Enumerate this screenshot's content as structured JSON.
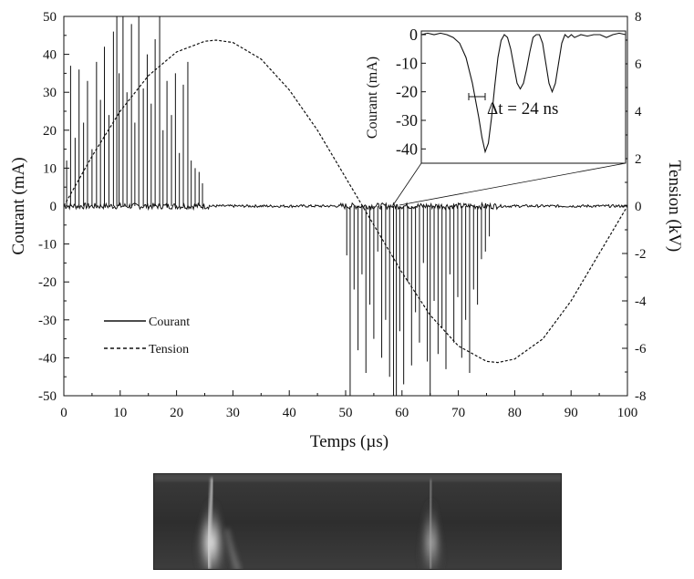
{
  "chart_data": [
    {
      "type": "line",
      "xlabel": "Temps (µs)",
      "ylabel": "Courant (mA)",
      "y2label": "Tension (kV)",
      "xlim": [
        0,
        100
      ],
      "ylim": [
        -50,
        50
      ],
      "y2lim": [
        -8,
        8
      ],
      "xticks": [
        "0",
        "10",
        "20",
        "30",
        "40",
        "50",
        "60",
        "70",
        "80",
        "90",
        "100"
      ],
      "yticks": [
        "50",
        "40",
        "30",
        "20",
        "10",
        "0",
        "-10",
        "-20",
        "-30",
        "-40",
        "-50"
      ],
      "y2ticks": [
        "8",
        "6",
        "4",
        "2",
        "0",
        "-2",
        "-4",
        "-6",
        "-8"
      ],
      "grid": false,
      "legend": {
        "placement": "lower-left",
        "entries": [
          {
            "name": "Courant",
            "style": "solid"
          },
          {
            "name": "Tension",
            "style": "dashed"
          }
        ]
      },
      "series": [
        {
          "name": "Tension",
          "axis": "right",
          "style": "dashed",
          "x": [
            0,
            5,
            10,
            15,
            20,
            25,
            27,
            30,
            35,
            40,
            45,
            50,
            55,
            60,
            65,
            70,
            75,
            77,
            80,
            85,
            90,
            95,
            100
          ],
          "y": [
            0,
            2.1,
            4.0,
            5.5,
            6.5,
            6.95,
            7.0,
            6.9,
            6.2,
            4.9,
            3.2,
            1.2,
            -0.8,
            -2.8,
            -4.6,
            -5.9,
            -6.55,
            -6.6,
            -6.45,
            -5.6,
            -4.0,
            -2.0,
            0
          ]
        },
        {
          "name": "Courant",
          "axis": "left",
          "style": "solid",
          "note_positive_burst_range": [
            0,
            25
          ],
          "note_negative_burst_range": [
            50,
            76
          ],
          "baseline": 0,
          "peaks_x": [
            0.5,
            1.2,
            2.0,
            2.7,
            3.5,
            4.2,
            5.0,
            5.8,
            6.5,
            7.2,
            8.0,
            8.8,
            9.4,
            9.8,
            10.5,
            11.2,
            12.0,
            12.6,
            13.3,
            14.1,
            14.8,
            15.5,
            16.2,
            17.0,
            17.6,
            18.3,
            19.1,
            19.8,
            20.5,
            21.2,
            22.0,
            22.6,
            23.3,
            24.0,
            24.6
          ],
          "peaks_y": [
            12,
            37,
            18,
            36,
            22,
            33,
            15,
            38,
            28,
            42,
            24,
            46,
            50,
            35,
            50,
            30,
            48,
            22,
            50,
            31,
            40,
            27,
            44,
            50,
            20,
            33,
            24,
            35,
            14,
            32,
            38,
            12,
            10,
            9,
            6
          ],
          "troughs_x": [
            50.2,
            50.8,
            51.5,
            52.2,
            52.9,
            53.6,
            54.3,
            55.0,
            55.7,
            56.4,
            57.1,
            57.8,
            58.5,
            59.0,
            59.6,
            60.3,
            61.0,
            61.7,
            62.4,
            63.1,
            63.8,
            64.5,
            65.0,
            65.7,
            66.4,
            67.1,
            67.8,
            68.5,
            69.2,
            69.9,
            70.6,
            71.3,
            72.0,
            72.7,
            73.4,
            74.1,
            74.8,
            75.5
          ],
          "troughs_y": [
            -13,
            -50,
            -22,
            -38,
            -18,
            -44,
            -26,
            -35,
            -12,
            -40,
            -30,
            -45,
            -50,
            -50,
            -33,
            -47,
            -20,
            -42,
            -28,
            -36,
            -15,
            -41,
            -50,
            -25,
            -39,
            -32,
            -43,
            -18,
            -36,
            -24,
            -40,
            -30,
            -44,
            -22,
            -26,
            -14,
            -12,
            -8
          ]
        }
      ]
    },
    {
      "type": "line",
      "xlabel": "",
      "ylabel": "Courant (mA)",
      "yticks": [
        "0",
        "-10",
        "-20",
        "-30",
        "-40"
      ],
      "ylim": [
        -45,
        0
      ],
      "annotation": "Δt = 24 ns",
      "series": [
        {
          "name": "",
          "x": [
            0,
            2,
            4,
            6,
            8,
            10,
            12,
            14,
            16,
            18,
            19,
            20,
            21,
            22,
            23,
            24,
            25,
            26,
            27,
            28,
            29,
            30,
            31,
            32,
            33,
            34,
            35,
            36,
            37,
            38,
            39,
            40,
            41,
            42,
            43,
            44,
            45,
            46,
            47,
            48,
            50,
            52,
            54,
            56,
            58,
            60,
            62,
            64
          ],
          "y": [
            0,
            0.5,
            0,
            0.5,
            0,
            -1,
            -3,
            -8,
            -17,
            -29,
            -36,
            -41,
            -38,
            -29,
            -18,
            -8,
            -2,
            0,
            -1,
            -5,
            -11,
            -17,
            -19,
            -17,
            -12,
            -6,
            -1,
            0,
            0,
            -3,
            -10,
            -17,
            -20,
            -17,
            -10,
            -3,
            0,
            -1,
            0,
            -1,
            0,
            -0.5,
            0,
            0,
            -1,
            0,
            0.5,
            0
          ]
        }
      ]
    }
  ]
}
